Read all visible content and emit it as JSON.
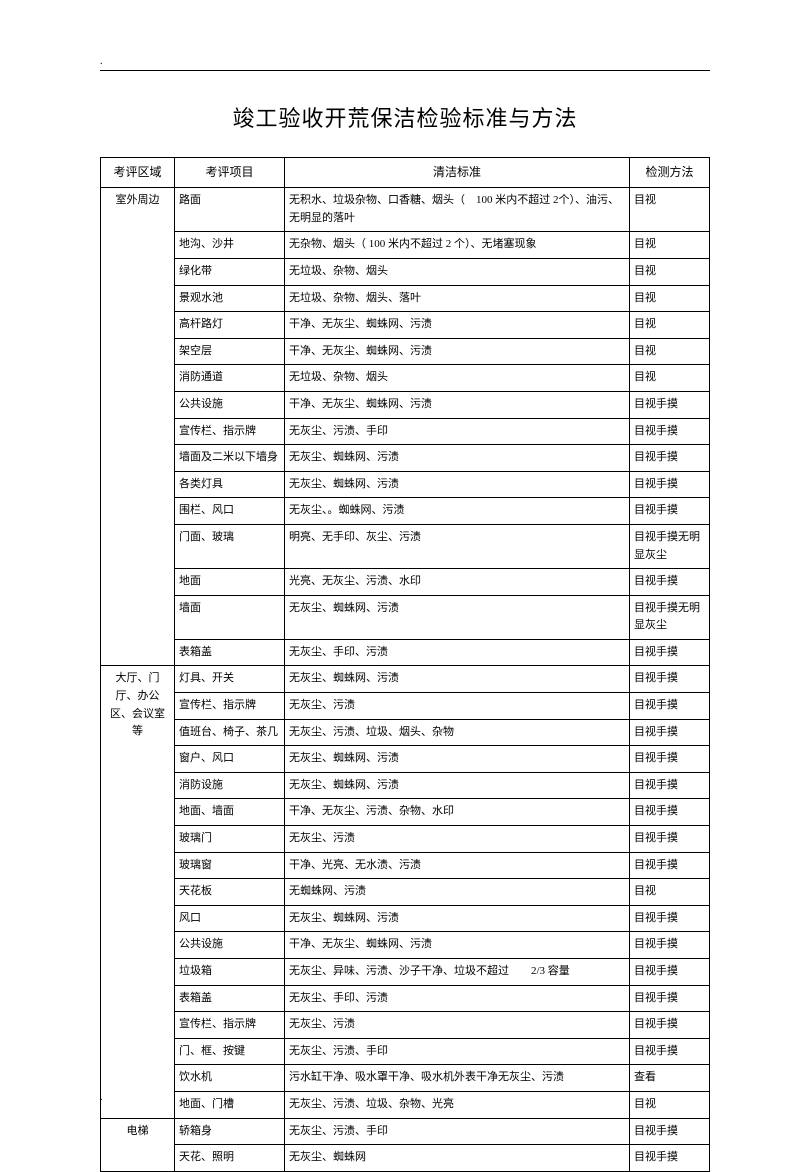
{
  "title": "竣工验收开荒保洁检验标准与方法",
  "headers": {
    "area": "考评区域",
    "item": "考评项目",
    "standard": "清洁标准",
    "method": "检测方法"
  },
  "sections": [
    {
      "area": "室外周边",
      "rows": [
        {
          "item": "路面",
          "standard": "无积水、垃圾杂物、口香糖、烟头（　100 米内不超过 2个）、油污、无明显的落叶",
          "method": "目视"
        },
        {
          "item": "地沟、沙井",
          "standard": "无杂物、烟头（ 100 米内不超过 2 个）、无堵塞现象",
          "method": "目视"
        },
        {
          "item": "绿化带",
          "standard": "无垃圾、杂物、烟头",
          "method": "目视"
        },
        {
          "item": "景观水池",
          "standard": "无垃圾、杂物、烟头、落叶",
          "method": "目视"
        },
        {
          "item": "高杆路灯",
          "standard": "干净、无灰尘、蜘蛛网、污渍",
          "method": "目视"
        },
        {
          "item": "架空层",
          "standard": "干净、无灰尘、蜘蛛网、污渍",
          "method": "目视"
        },
        {
          "item": "消防通道",
          "standard": "无垃圾、杂物、烟头",
          "method": "目视"
        },
        {
          "item": "公共设施",
          "standard": "干净、无灰尘、蜘蛛网、污渍",
          "method": "目视手摸"
        },
        {
          "item": "宣传栏、指示牌",
          "standard": "无灰尘、污渍、手印",
          "method": "目视手摸"
        },
        {
          "item": "墙面及二米以下墙身",
          "standard": "无灰尘、蜘蛛网、污渍",
          "method": "目视手摸"
        },
        {
          "item": "各类灯具",
          "standard": "无灰尘、蜘蛛网、污渍",
          "method": "目视手摸"
        },
        {
          "item": "围栏、风口",
          "standard": "无灰尘、。蜘蛛网、污渍",
          "method": "目视手摸"
        },
        {
          "item": "门面、玻璃",
          "standard": "明亮、无手印、灰尘、污渍",
          "method": "目视手摸无明显灰尘"
        },
        {
          "item": "地面",
          "standard": "光亮、无灰尘、污渍、水印",
          "method": "目视手摸"
        },
        {
          "item": "墙面",
          "standard": "无灰尘、蜘蛛网、污渍",
          "method": "目视手摸无明显灰尘"
        },
        {
          "item": "表箱盖",
          "standard": "无灰尘、手印、污渍",
          "method": "目视手摸"
        }
      ]
    },
    {
      "area": "大厅、门厅、办公区、会议室等",
      "rows": [
        {
          "item": "灯具、开关",
          "standard": "无灰尘、蜘蛛网、污渍",
          "method": "目视手摸"
        },
        {
          "item": "宣传栏、指示牌",
          "standard": "无灰尘、污渍",
          "method": "目视手摸"
        },
        {
          "item": "值班台、椅子、茶几",
          "standard": "无灰尘、污渍、垃圾、烟头、杂物",
          "method": "目视手摸"
        },
        {
          "item": "窗户、风口",
          "standard": "无灰尘、蜘蛛网、污渍",
          "method": "目视手摸"
        },
        {
          "item": "消防设施",
          "standard": "无灰尘、蜘蛛网、污渍",
          "method": "目视手摸"
        },
        {
          "item": "地面、墙面",
          "standard": "干净、无灰尘、污渍、杂物、水印",
          "method": "目视手摸"
        },
        {
          "item": "玻璃门",
          "standard": "无灰尘、污渍",
          "method": "目视手摸"
        },
        {
          "item": "玻璃窗",
          "standard": "干净、光亮、无水渍、污渍",
          "method": "目视手摸"
        },
        {
          "item": "天花板",
          "standard": "无蜘蛛网、污渍",
          "method": "目视"
        },
        {
          "item": "风口",
          "standard": "无灰尘、蜘蛛网、污渍",
          "method": "目视手摸"
        },
        {
          "item": "公共设施",
          "standard": "干净、无灰尘、蜘蛛网、污渍",
          "method": "目视手摸"
        },
        {
          "item": "垃圾箱",
          "standard": "无灰尘、异味、污渍、沙子干净、垃圾不超过　　2/3 容量",
          "method": "目视手摸"
        },
        {
          "item": "表箱盖",
          "standard": "无灰尘、手印、污渍",
          "method": "目视手摸"
        },
        {
          "item": "宣传栏、指示牌",
          "standard": "无灰尘、污渍",
          "method": "目视手摸"
        },
        {
          "item": "门、框、按键",
          "standard": "无灰尘、污渍、手印",
          "method": "目视手摸"
        },
        {
          "item": "饮水机",
          "standard": "污水缸干净、吸水罩干净、吸水机外表干净无灰尘、污渍",
          "method": "查看"
        },
        {
          "item": "地面、门槽",
          "standard": "无灰尘、污渍、垃圾、杂物、光亮",
          "method": "目视"
        }
      ]
    },
    {
      "area": "电梯",
      "rows": [
        {
          "item": "轿箱身",
          "standard": "无灰尘、污渍、手印",
          "method": "目视手摸"
        },
        {
          "item": "天花、照明",
          "standard": "无灰尘、蜘蛛网",
          "method": "目视手摸"
        }
      ]
    }
  ]
}
